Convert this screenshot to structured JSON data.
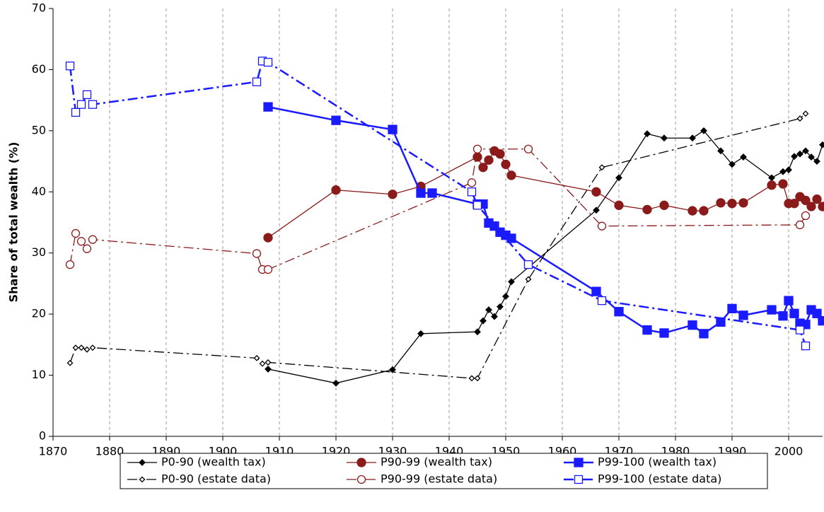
{
  "chart_data": {
    "type": "line",
    "y_label": "Share of total wealth (%)",
    "xlim": [
      1870,
      2006
    ],
    "xticks": [
      1870,
      1880,
      1890,
      1900,
      1910,
      1920,
      1930,
      1940,
      1950,
      1960,
      1970,
      1980,
      1990,
      2000
    ],
    "ylim": [
      0,
      70
    ],
    "yticks": [
      0,
      10,
      20,
      30,
      40,
      50,
      60,
      70
    ],
    "grid": "x",
    "legend": "bottom",
    "series": [
      {
        "name": "P0-90 (wealth tax)",
        "color": "#000000",
        "line_style": "solid",
        "marker": "diamond",
        "marker_fill": "filled",
        "x": [
          1908,
          1920,
          1930,
          1935,
          1945,
          1946,
          1947,
          1948,
          1949,
          1950,
          1951,
          1966,
          1970,
          1975,
          1978,
          1983,
          1985,
          1988,
          1990,
          1992,
          1997,
          1999,
          2000,
          2001,
          2002,
          2003,
          2004,
          2005,
          2006
        ],
        "values": [
          11.0,
          8.7,
          10.9,
          16.8,
          17.1,
          18.9,
          20.7,
          19.6,
          21.2,
          22.9,
          25.3,
          37.0,
          42.3,
          49.5,
          48.8,
          48.8,
          50.0,
          46.7,
          44.5,
          45.7,
          42.3,
          43.3,
          43.6,
          45.8,
          46.2,
          46.7,
          45.7,
          45.0,
          47.7
        ]
      },
      {
        "name": "P90-99 (wealth tax)",
        "color": "#8b1a1a",
        "line_style": "solid",
        "marker": "circle",
        "marker_fill": "filled",
        "x": [
          1908,
          1920,
          1930,
          1935,
          1945,
          1946,
          1947,
          1948,
          1949,
          1950,
          1951,
          1966,
          1970,
          1975,
          1978,
          1983,
          1985,
          1988,
          1990,
          1992,
          1997,
          1999,
          2000,
          2001,
          2002,
          2003,
          2004,
          2005,
          2006
        ],
        "values": [
          32.5,
          40.3,
          39.6,
          40.9,
          45.7,
          44.0,
          45.2,
          46.7,
          46.2,
          44.5,
          42.7,
          40.0,
          37.8,
          37.1,
          37.8,
          36.9,
          36.9,
          38.2,
          38.1,
          38.2,
          41.1,
          41.3,
          38.1,
          38.1,
          39.2,
          38.6,
          37.6,
          38.8,
          37.6
        ]
      },
      {
        "name": "P99-100 (wealth tax)",
        "color": "#1a1aff",
        "line_style": "solid",
        "marker": "square",
        "marker_fill": "filled",
        "x": [
          1908,
          1920,
          1930,
          1935,
          1937,
          1945,
          1946,
          1947,
          1948,
          1949,
          1950,
          1951,
          1966,
          1970,
          1975,
          1978,
          1983,
          1985,
          1988,
          1990,
          1992,
          1997,
          1999,
          2000,
          2001,
          2002,
          2003,
          2004,
          2005,
          2006
        ],
        "values": [
          53.9,
          51.7,
          50.2,
          39.8,
          39.8,
          38.0,
          38.0,
          34.9,
          34.4,
          33.4,
          32.9,
          32.4,
          23.7,
          20.4,
          17.4,
          16.9,
          18.2,
          16.8,
          18.7,
          20.9,
          19.8,
          20.7,
          19.7,
          22.2,
          20.1,
          18.5,
          18.3,
          20.7,
          20.1,
          18.9
        ]
      },
      {
        "name": "P0-90 (estate data)",
        "color": "#000000",
        "line_style": "dashdot",
        "marker": "diamond",
        "marker_fill": "open",
        "x": [
          1873,
          1874,
          1875,
          1876,
          1877,
          1906,
          1907,
          1908,
          1944,
          1945,
          1954,
          1967,
          2002,
          2003
        ],
        "values": [
          12.0,
          14.5,
          14.5,
          14.2,
          14.5,
          12.8,
          11.9,
          12.1,
          9.5,
          9.5,
          25.7,
          44.0,
          52.0,
          52.8
        ]
      },
      {
        "name": "P90-99 (estate data)",
        "color": "#8b1a1a",
        "line_style": "dashdot",
        "marker": "circle",
        "marker_fill": "open",
        "x": [
          1873,
          1874,
          1875,
          1876,
          1877,
          1906,
          1907,
          1908,
          1944,
          1945,
          1954,
          1967,
          2002,
          2003
        ],
        "values": [
          28.1,
          33.2,
          31.9,
          30.7,
          32.2,
          29.9,
          27.3,
          27.3,
          41.5,
          47.0,
          47.0,
          34.4,
          34.6,
          36.1
        ]
      },
      {
        "name": "P99-100 (estate data)",
        "color": "#1a1aff",
        "line_style": "dashdot",
        "marker": "square",
        "marker_fill": "open",
        "x": [
          1873,
          1874,
          1875,
          1876,
          1877,
          1906,
          1907,
          1908,
          1944,
          1945,
          1954,
          1967,
          2002,
          2003
        ],
        "values": [
          60.6,
          53.0,
          54.3,
          55.9,
          54.3,
          58.0,
          61.4,
          61.2,
          40.0,
          37.8,
          28.1,
          22.2,
          17.4,
          14.8
        ]
      }
    ]
  }
}
